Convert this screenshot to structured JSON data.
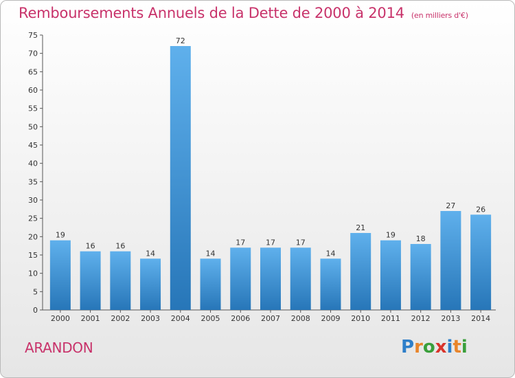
{
  "header": {
    "title": "Remboursements Annuels de la Dette de 2000 à 2014",
    "unit": "(en milliers d'€)"
  },
  "commune": "ARANDON",
  "logo": {
    "text": "Proxiti",
    "colors": [
      "#2e7fc9",
      "#e8852b",
      "#3a9f3b",
      "#d9342b",
      "#2e7fc9",
      "#e8852b",
      "#3a9f3b"
    ]
  },
  "chart_data": {
    "type": "bar",
    "categories": [
      "2000",
      "2001",
      "2002",
      "2003",
      "2004",
      "2005",
      "2006",
      "2007",
      "2008",
      "2009",
      "2010",
      "2011",
      "2012",
      "2013",
      "2014"
    ],
    "values": [
      19,
      16,
      16,
      14,
      72,
      14,
      17,
      17,
      17,
      14,
      21,
      19,
      18,
      27,
      26
    ],
    "title": "Remboursements Annuels de la Dette de 2000 à 2014",
    "ylim": [
      0,
      75
    ],
    "ytick_step": 5,
    "grid": false,
    "bar_color": "#3f9be0",
    "data_labels": true
  }
}
